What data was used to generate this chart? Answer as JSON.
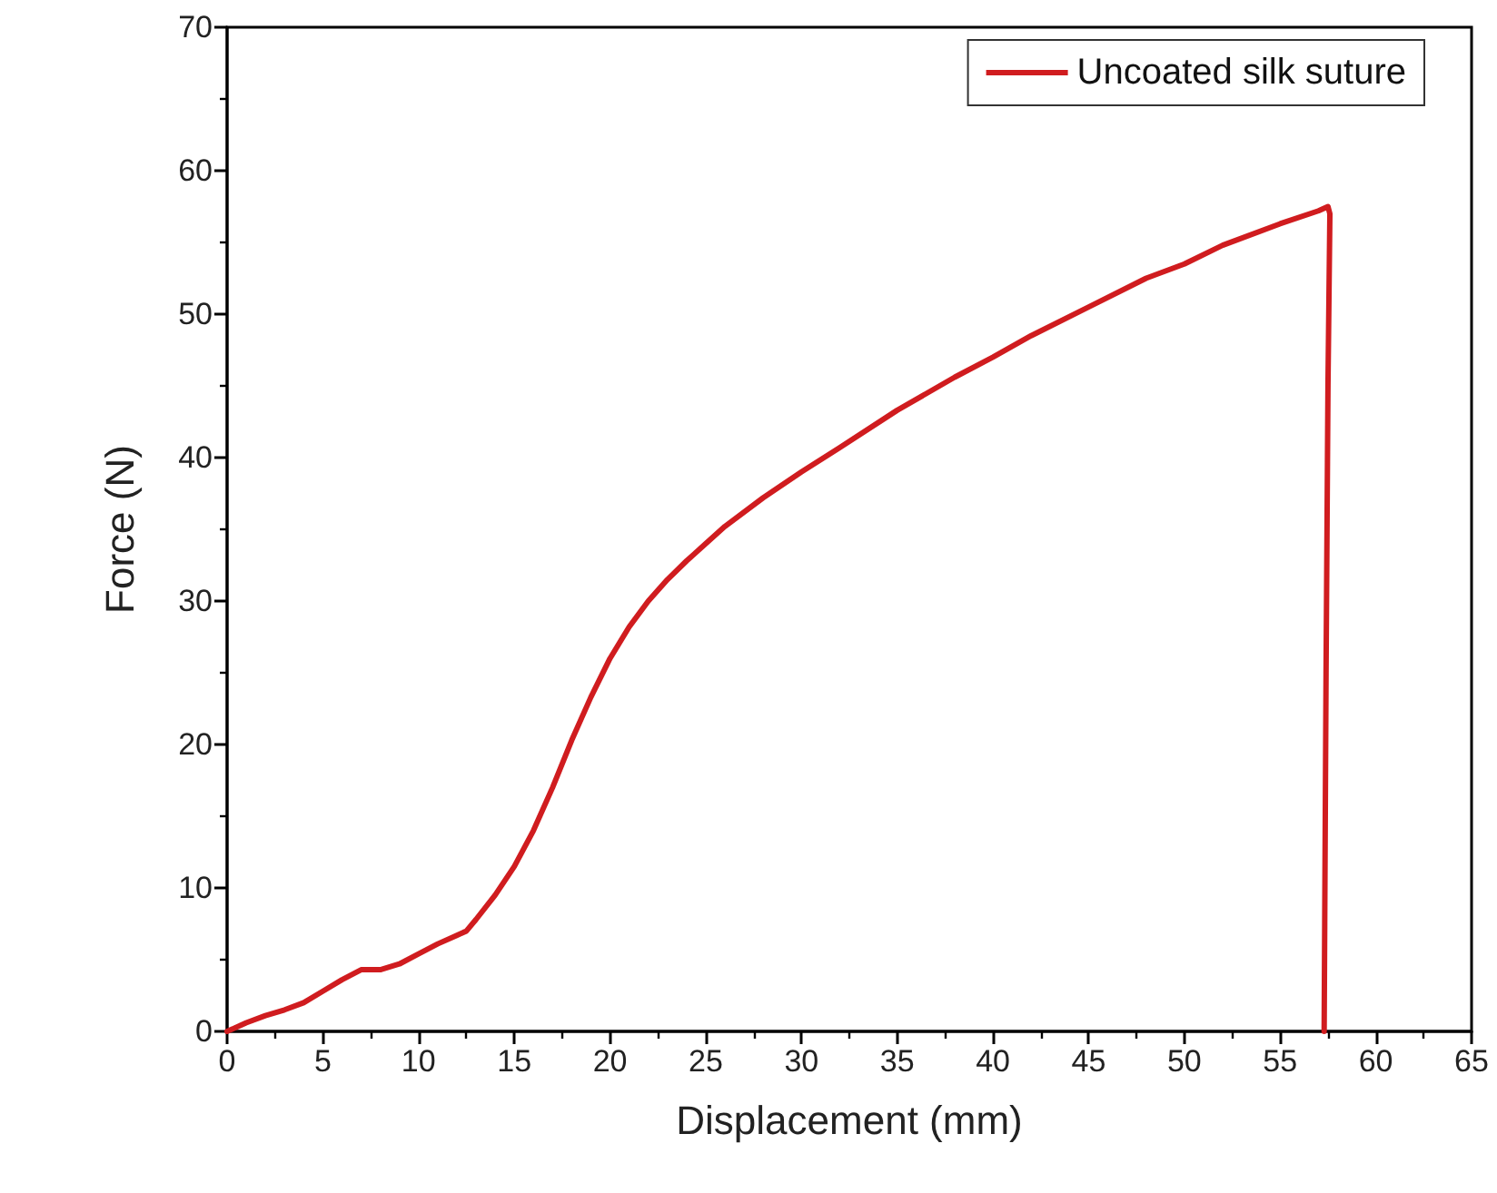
{
  "chart_data": {
    "type": "line",
    "xlabel": "Displacement (mm)",
    "ylabel": "Force (N)",
    "xlim": [
      0,
      65
    ],
    "xticks": [
      0,
      5,
      10,
      15,
      20,
      25,
      30,
      35,
      40,
      45,
      50,
      55,
      60,
      65
    ],
    "ylim": [
      0,
      70
    ],
    "yticks": [
      0,
      10,
      20,
      30,
      40,
      50,
      60,
      70
    ],
    "grid": false,
    "legend": "top right",
    "marker": "none",
    "line_style": "solid",
    "series": [
      {
        "name": "Uncoated silk suture",
        "color": "#d01c1f",
        "x": [
          0,
          1,
          2,
          3,
          4,
          5,
          6,
          7,
          8,
          9,
          10,
          11,
          12,
          12.5,
          13,
          14,
          15,
          16,
          17,
          18,
          19,
          20,
          21,
          22,
          23,
          24,
          25,
          26,
          28,
          30,
          32,
          35,
          38,
          40,
          42,
          45,
          48,
          50,
          52,
          55,
          57,
          57.5,
          57.6,
          57.5,
          57.4,
          57.3
        ],
        "values": [
          0,
          0.6,
          1.1,
          1.5,
          2,
          2.8,
          3.6,
          4.3,
          4.3,
          4.7,
          5.4,
          6.1,
          6.7,
          7,
          7.8,
          9.5,
          11.5,
          14,
          17,
          20.3,
          23.3,
          26,
          28.2,
          30,
          31.5,
          32.8,
          34,
          35.2,
          37.2,
          39,
          40.7,
          43.3,
          45.6,
          47,
          48.5,
          50.5,
          52.5,
          53.5,
          54.8,
          56.3,
          57.2,
          57.5,
          57,
          45,
          25,
          0
        ]
      }
    ]
  }
}
